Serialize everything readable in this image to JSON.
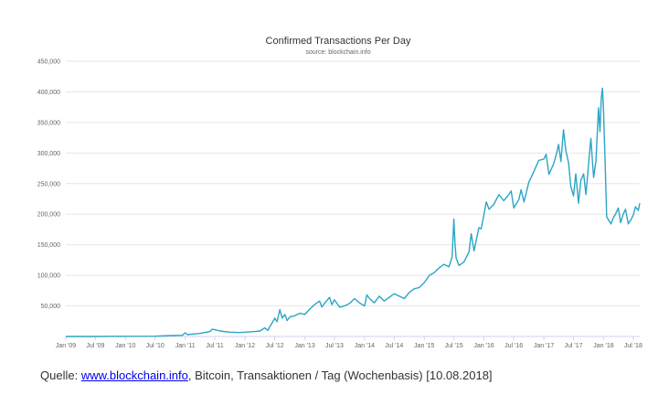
{
  "chart_data": {
    "type": "line",
    "title": "Confirmed Transactions Per Day",
    "subtitle": "source: blockchain.info",
    "xlabel": "",
    "ylabel": "",
    "x_range": [
      "2009-01-01",
      "2018-08-10"
    ],
    "x_ticks": [
      "Jan '09",
      "Jul '09",
      "Jan '10",
      "Jul '10",
      "Jan '11",
      "Jul '11",
      "Jan '12",
      "Jul '12",
      "Jan '13",
      "Jul '13",
      "Jan '14",
      "Jul '14",
      "Jan '15",
      "Jul '15",
      "Jan '16",
      "Jul '16",
      "Jan '17",
      "Jul '17",
      "Jan '18",
      "Jul '18"
    ],
    "ylim": [
      0,
      450000
    ],
    "y_ticks": [
      50000,
      100000,
      150000,
      200000,
      250000,
      300000,
      350000,
      400000,
      450000
    ],
    "y_tick_labels": [
      "50,000",
      "100,000",
      "150,000",
      "200,000",
      "250,000",
      "300,000",
      "350,000",
      "400,000",
      "450,000"
    ],
    "grid": true,
    "line_color": "#2ca5c4",
    "series": [
      {
        "x": [
          "2009-01-01",
          "2009-07-01",
          "2010-01-01",
          "2010-07-01",
          "2010-10-01",
          "2010-12-15",
          "2011-01-01",
          "2011-01-15",
          "2011-02-01",
          "2011-04-01",
          "2011-06-01",
          "2011-06-15",
          "2011-07-01",
          "2011-08-01",
          "2011-10-01",
          "2011-12-01",
          "2012-01-01",
          "2012-03-01",
          "2012-04-01",
          "2012-05-01",
          "2012-05-20",
          "2012-06-01",
          "2012-06-15",
          "2012-07-01",
          "2012-07-15",
          "2012-08-01",
          "2012-08-15",
          "2012-09-01",
          "2012-09-15",
          "2012-10-01",
          "2012-11-01",
          "2012-12-01",
          "2013-01-01",
          "2013-02-01",
          "2013-03-01",
          "2013-04-01",
          "2013-04-15",
          "2013-05-01",
          "2013-06-01",
          "2013-06-15",
          "2013-07-01",
          "2013-08-01",
          "2013-09-01",
          "2013-10-01",
          "2013-11-01",
          "2013-12-01",
          "2014-01-01",
          "2014-01-15",
          "2014-02-01",
          "2014-03-01",
          "2014-04-01",
          "2014-05-01",
          "2014-06-01",
          "2014-07-01",
          "2014-08-01",
          "2014-09-01",
          "2014-10-01",
          "2014-11-01",
          "2014-12-01",
          "2015-01-01",
          "2015-02-01",
          "2015-03-01",
          "2015-04-01",
          "2015-05-01",
          "2015-06-01",
          "2015-06-20",
          "2015-07-01",
          "2015-07-08",
          "2015-07-15",
          "2015-08-01",
          "2015-09-01",
          "2015-10-01",
          "2015-10-15",
          "2015-11-01",
          "2015-11-15",
          "2015-12-01",
          "2015-12-15",
          "2016-01-01",
          "2016-01-15",
          "2016-02-01",
          "2016-03-01",
          "2016-04-01",
          "2016-05-01",
          "2016-06-01",
          "2016-06-15",
          "2016-07-01",
          "2016-08-01",
          "2016-08-15",
          "2016-09-01",
          "2016-10-01",
          "2016-11-01",
          "2016-12-01",
          "2017-01-01",
          "2017-01-15",
          "2017-02-01",
          "2017-03-01",
          "2017-03-20",
          "2017-04-01",
          "2017-04-15",
          "2017-05-01",
          "2017-05-15",
          "2017-06-01",
          "2017-06-15",
          "2017-07-01",
          "2017-07-15",
          "2017-08-01",
          "2017-08-15",
          "2017-09-01",
          "2017-09-15",
          "2017-10-01",
          "2017-10-15",
          "2017-11-01",
          "2017-11-15",
          "2017-12-01",
          "2017-12-10",
          "2017-12-18",
          "2017-12-25",
          "2018-01-01",
          "2018-01-10",
          "2018-01-20",
          "2018-02-01",
          "2018-02-15",
          "2018-03-01",
          "2018-03-15",
          "2018-04-01",
          "2018-04-15",
          "2018-05-01",
          "2018-05-15",
          "2018-06-01",
          "2018-06-15",
          "2018-07-01",
          "2018-07-15",
          "2018-08-01",
          "2018-08-10"
        ],
        "y": [
          0,
          0,
          300,
          500,
          1500,
          2000,
          6000,
          3000,
          3500,
          5000,
          8000,
          12000,
          11000,
          9000,
          7000,
          6500,
          7000,
          8000,
          9000,
          14000,
          10000,
          16000,
          22000,
          30000,
          24000,
          44000,
          30000,
          36000,
          26000,
          32000,
          34000,
          38000,
          36000,
          45000,
          52000,
          58000,
          48000,
          54000,
          64000,
          52000,
          60000,
          48000,
          50000,
          54000,
          62000,
          55000,
          50000,
          68000,
          62000,
          55000,
          66000,
          58000,
          64000,
          70000,
          66000,
          62000,
          72000,
          78000,
          80000,
          88000,
          100000,
          104000,
          112000,
          118000,
          114000,
          130000,
          192000,
          150000,
          128000,
          116000,
          122000,
          138000,
          168000,
          140000,
          158000,
          178000,
          176000,
          200000,
          220000,
          208000,
          216000,
          232000,
          222000,
          232000,
          238000,
          210000,
          224000,
          240000,
          220000,
          252000,
          270000,
          288000,
          290000,
          298000,
          265000,
          282000,
          300000,
          314000,
          286000,
          338000,
          304000,
          284000,
          245000,
          230000,
          266000,
          218000,
          256000,
          266000,
          232000,
          282000,
          324000,
          260000,
          286000,
          374000,
          335000,
          390000,
          406000,
          368000,
          290000,
          196000,
          190000,
          184000,
          194000,
          200000,
          210000,
          186000,
          200000,
          208000,
          184000,
          190000,
          198000,
          212000,
          206000,
          218000
        ]
      }
    ]
  },
  "caption": {
    "prefix": "Quelle: ",
    "link": "www.blockchain.info",
    "suffix": ", Bitcoin, Transaktionen / Tag (Wochenbasis) [10.08.2018]"
  }
}
